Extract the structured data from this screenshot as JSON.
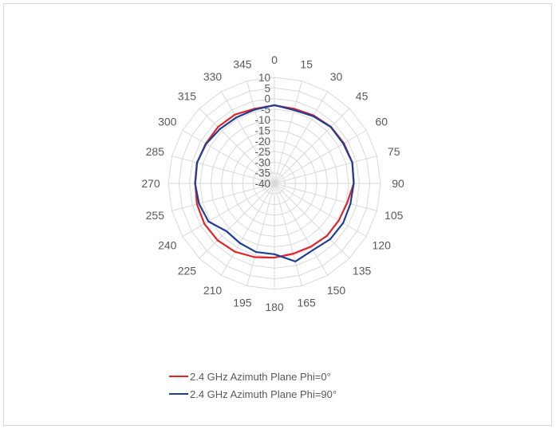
{
  "chart_data": {
    "type": "radar",
    "title": "",
    "angles": [
      "0",
      "15",
      "30",
      "45",
      "60",
      "75",
      "90",
      "105",
      "120",
      "135",
      "150",
      "165",
      "180",
      "195",
      "210",
      "225",
      "240",
      "255",
      "270",
      "285",
      "300",
      "315",
      "330",
      "345"
    ],
    "r_ticks": [
      "10",
      "5",
      "0",
      "-5",
      "-10",
      "-15",
      "-20",
      "-25",
      "-30",
      "-35",
      "-40"
    ],
    "r_range": [
      -40,
      10
    ],
    "grid": true,
    "legend_position": "bottom",
    "series": [
      {
        "name": "2.4 GHz Azimuth Plane Phi=0°",
        "color": "#e0242a",
        "values": [
          -3.2,
          -3.6,
          -3.0,
          -2.3,
          -2.2,
          -2.0,
          -2.6,
          -4.5,
          -5.0,
          -5.0,
          -5.6,
          -5.7,
          -5.0,
          -4.0,
          -2.8,
          -2.1,
          -1.9,
          -2.2,
          -2.7,
          -2.3,
          -2.6,
          -2.4,
          -2.6,
          -3.6
        ]
      },
      {
        "name": "2.4 GHz Azimuth Plane Phi=90°",
        "color": "#1f3f94",
        "values": [
          -3.1,
          -4.2,
          -3.4,
          -2.4,
          -2.5,
          -2.0,
          -2.6,
          -2.9,
          -2.6,
          -2.8,
          -3.7,
          -1.9,
          -6.6,
          -6.5,
          -7.5,
          -8.1,
          -4.1,
          -3.2,
          -2.6,
          -2.2,
          -2.8,
          -3.7,
          -4.1,
          -4.0
        ]
      }
    ]
  }
}
